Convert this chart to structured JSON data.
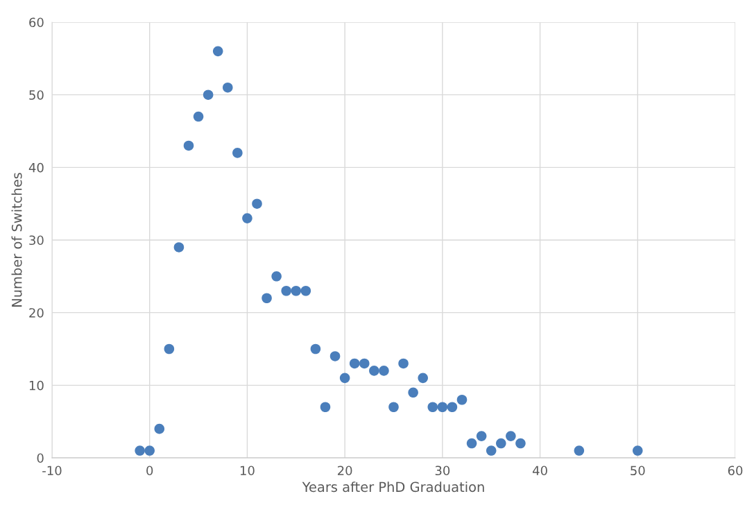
{
  "chart_data": {
    "type": "scatter",
    "xlabel": "Years after PhD Graduation",
    "ylabel": "Number of Switches",
    "x": [
      -1,
      0,
      1,
      2,
      3,
      4,
      5,
      6,
      7,
      8,
      9,
      10,
      11,
      12,
      13,
      14,
      15,
      16,
      17,
      18,
      19,
      20,
      21,
      22,
      23,
      24,
      25,
      26,
      27,
      28,
      29,
      30,
      31,
      32,
      33,
      34,
      35,
      36,
      37,
      38,
      44,
      50
    ],
    "values": [
      1,
      1,
      4,
      15,
      29,
      43,
      47,
      50,
      56,
      51,
      42,
      33,
      35,
      22,
      25,
      23,
      23,
      23,
      15,
      7,
      14,
      11,
      13,
      13,
      12,
      12,
      7,
      13,
      9,
      11,
      7,
      7,
      7,
      8,
      2,
      3,
      1,
      2,
      3,
      2,
      1,
      1
    ],
    "color": "#4a7ebb",
    "marker": "circle",
    "xlim": [
      -10,
      60
    ],
    "xticks": [
      -10,
      0,
      10,
      20,
      30,
      40,
      50,
      60
    ],
    "ylim": [
      0,
      60
    ],
    "yticks": [
      0,
      10,
      20,
      30,
      40,
      50,
      60
    ],
    "grid": true
  }
}
